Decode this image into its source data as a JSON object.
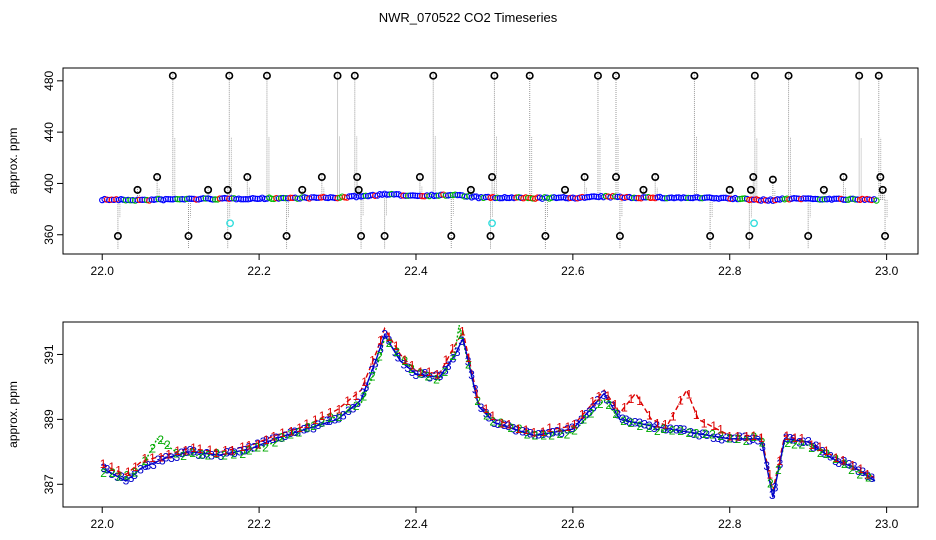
{
  "title": "NWR_070522  CO2 Timeseries",
  "colors": {
    "axis": "#000000",
    "vertical_lines": "#999999",
    "outlier": "#000000",
    "series1": "#0000ff",
    "series2": "#ff0000",
    "series3": "#00bb00",
    "cyan_marker": "#33dddd",
    "bottom_1": "#dd0000",
    "bottom_2": "#00aa00",
    "bottom_3": "#0000cc"
  },
  "chart_data": [
    {
      "type": "scatter",
      "ylabel": "approx. ppm",
      "xlim": [
        21.95,
        23.04
      ],
      "ylim": [
        345,
        490
      ],
      "xticks": [
        "22.0",
        "22.2",
        "22.4",
        "22.6",
        "22.8",
        "23.0"
      ],
      "yticks": [
        "360",
        "400",
        "440",
        "480"
      ],
      "baseline": [
        [
          22.0,
          387.5
        ],
        [
          22.05,
          387.0
        ],
        [
          22.1,
          387.8
        ],
        [
          22.15,
          388.0
        ],
        [
          22.2,
          388.3
        ],
        [
          22.25,
          388.7
        ],
        [
          22.3,
          389.0
        ],
        [
          22.33,
          390.0
        ],
        [
          22.36,
          391.5
        ],
        [
          22.4,
          390.5
        ],
        [
          22.45,
          391.0
        ],
        [
          22.48,
          389.0
        ],
        [
          22.55,
          388.6
        ],
        [
          22.6,
          388.8
        ],
        [
          22.64,
          389.7
        ],
        [
          22.68,
          389.0
        ],
        [
          22.75,
          388.8
        ],
        [
          22.8,
          388.4
        ],
        [
          22.85,
          386.8
        ],
        [
          22.88,
          388.3
        ],
        [
          22.95,
          387.6
        ],
        [
          22.99,
          387.2
        ]
      ],
      "spikes": [
        [
          22.02,
          359
        ],
        [
          22.045,
          395
        ],
        [
          22.07,
          405
        ],
        [
          22.09,
          484
        ],
        [
          22.11,
          359
        ],
        [
          22.135,
          395
        ],
        [
          22.16,
          359
        ],
        [
          22.16,
          395
        ],
        [
          22.162,
          484
        ],
        [
          22.185,
          405
        ],
        [
          22.21,
          484
        ],
        [
          22.235,
          359
        ],
        [
          22.255,
          395
        ],
        [
          22.28,
          405
        ],
        [
          22.3,
          484
        ],
        [
          22.322,
          484
        ],
        [
          22.325,
          405
        ],
        [
          22.327,
          395
        ],
        [
          22.33,
          359
        ],
        [
          22.36,
          359
        ],
        [
          22.405,
          405
        ],
        [
          22.422,
          484
        ],
        [
          22.445,
          359
        ],
        [
          22.47,
          395
        ],
        [
          22.495,
          359
        ],
        [
          22.497,
          405
        ],
        [
          22.5,
          484
        ],
        [
          22.545,
          484
        ],
        [
          22.565,
          359
        ],
        [
          22.59,
          395
        ],
        [
          22.615,
          405
        ],
        [
          22.632,
          484
        ],
        [
          22.655,
          484
        ],
        [
          22.655,
          405
        ],
        [
          22.66,
          359
        ],
        [
          22.69,
          395
        ],
        [
          22.705,
          405
        ],
        [
          22.755,
          484
        ],
        [
          22.775,
          359
        ],
        [
          22.8,
          395
        ],
        [
          22.825,
          359
        ],
        [
          22.827,
          395
        ],
        [
          22.83,
          405
        ],
        [
          22.832,
          484
        ],
        [
          22.875,
          484
        ],
        [
          22.855,
          403
        ],
        [
          22.9,
          359
        ],
        [
          22.92,
          395
        ],
        [
          22.945,
          405
        ],
        [
          22.965,
          484
        ],
        [
          22.99,
          484
        ],
        [
          22.992,
          405
        ],
        [
          22.995,
          395
        ],
        [
          22.998,
          359
        ]
      ],
      "cyan_points": [
        [
          22.163,
          369
        ],
        [
          22.497,
          369
        ],
        [
          22.831,
          369
        ]
      ]
    },
    {
      "type": "line",
      "ylabel": "approx. ppm",
      "xlim": [
        21.95,
        23.04
      ],
      "ylim": [
        386.3,
        392.0
      ],
      "xticks": [
        "22.0",
        "22.2",
        "22.4",
        "22.6",
        "22.8",
        "23.0"
      ],
      "yticks": [
        "387",
        "389",
        "391"
      ],
      "series": [
        {
          "label": "1",
          "points": [
            [
              22.0,
              387.6
            ],
            [
              22.03,
              387.3
            ],
            [
              22.05,
              387.7
            ],
            [
              22.08,
              387.9
            ],
            [
              22.11,
              388.1
            ],
            [
              22.15,
              388.0
            ],
            [
              22.19,
              388.2
            ],
            [
              22.22,
              388.5
            ],
            [
              22.26,
              388.8
            ],
            [
              22.3,
              389.3
            ],
            [
              22.33,
              389.9
            ],
            [
              22.35,
              391.1
            ],
            [
              22.36,
              391.8
            ],
            [
              22.38,
              391.0
            ],
            [
              22.4,
              390.5
            ],
            [
              22.43,
              390.4
            ],
            [
              22.45,
              391.3
            ],
            [
              22.46,
              391.7
            ],
            [
              22.48,
              389.5
            ],
            [
              22.5,
              389.0
            ],
            [
              22.55,
              388.6
            ],
            [
              22.6,
              388.8
            ],
            [
              22.64,
              389.9
            ],
            [
              22.66,
              389.2
            ],
            [
              22.68,
              389.8
            ],
            [
              22.7,
              389.0
            ],
            [
              22.72,
              388.8
            ],
            [
              22.745,
              389.9
            ],
            [
              22.76,
              389.0
            ],
            [
              22.8,
              388.5
            ],
            [
              22.84,
              388.5
            ],
            [
              22.855,
              386.8
            ],
            [
              22.87,
              388.5
            ],
            [
              22.9,
              388.3
            ],
            [
              22.93,
              387.9
            ],
            [
              22.96,
              387.5
            ],
            [
              22.985,
              387.2
            ]
          ]
        },
        {
          "label": "2",
          "points": [
            [
              22.0,
              387.4
            ],
            [
              22.03,
              387.2
            ],
            [
              22.05,
              387.5
            ],
            [
              22.07,
              388.4
            ],
            [
              22.1,
              387.9
            ],
            [
              22.15,
              387.9
            ],
            [
              22.19,
              388.0
            ],
            [
              22.22,
              388.3
            ],
            [
              22.26,
              388.7
            ],
            [
              22.3,
              389.1
            ],
            [
              22.33,
              389.5
            ],
            [
              22.35,
              390.6
            ],
            [
              22.36,
              391.5
            ],
            [
              22.38,
              390.9
            ],
            [
              22.4,
              390.4
            ],
            [
              22.43,
              390.2
            ],
            [
              22.45,
              391.1
            ],
            [
              22.455,
              391.9
            ],
            [
              22.48,
              389.4
            ],
            [
              22.5,
              388.9
            ],
            [
              22.55,
              388.5
            ],
            [
              22.6,
              388.6
            ],
            [
              22.64,
              389.6
            ],
            [
              22.66,
              389.0
            ],
            [
              22.7,
              388.7
            ],
            [
              22.75,
              388.6
            ],
            [
              22.8,
              388.4
            ],
            [
              22.84,
              388.4
            ],
            [
              22.855,
              386.7
            ],
            [
              22.87,
              388.3
            ],
            [
              22.9,
              388.2
            ],
            [
              22.93,
              387.8
            ],
            [
              22.96,
              387.4
            ],
            [
              22.985,
              387.1
            ]
          ]
        },
        {
          "label": "3",
          "points": [
            [
              22.0,
              387.5
            ],
            [
              22.03,
              387.1
            ],
            [
              22.05,
              387.5
            ],
            [
              22.08,
              387.8
            ],
            [
              22.11,
              388.0
            ],
            [
              22.15,
              387.9
            ],
            [
              22.19,
              388.1
            ],
            [
              22.22,
              388.4
            ],
            [
              22.26,
              388.7
            ],
            [
              22.3,
              389.0
            ],
            [
              22.33,
              389.6
            ],
            [
              22.35,
              390.9
            ],
            [
              22.36,
              391.6
            ],
            [
              22.38,
              390.8
            ],
            [
              22.4,
              390.4
            ],
            [
              22.43,
              390.3
            ],
            [
              22.45,
              391.0
            ],
            [
              22.46,
              391.5
            ],
            [
              22.48,
              389.4
            ],
            [
              22.5,
              388.9
            ],
            [
              22.55,
              388.5
            ],
            [
              22.6,
              388.7
            ],
            [
              22.64,
              389.8
            ],
            [
              22.66,
              389.0
            ],
            [
              22.7,
              388.8
            ],
            [
              22.75,
              388.6
            ],
            [
              22.8,
              388.4
            ],
            [
              22.84,
              388.4
            ],
            [
              22.855,
              386.6
            ],
            [
              22.87,
              388.4
            ],
            [
              22.9,
              388.3
            ],
            [
              22.93,
              387.8
            ],
            [
              22.96,
              387.5
            ],
            [
              22.985,
              387.1
            ]
          ]
        }
      ]
    }
  ]
}
